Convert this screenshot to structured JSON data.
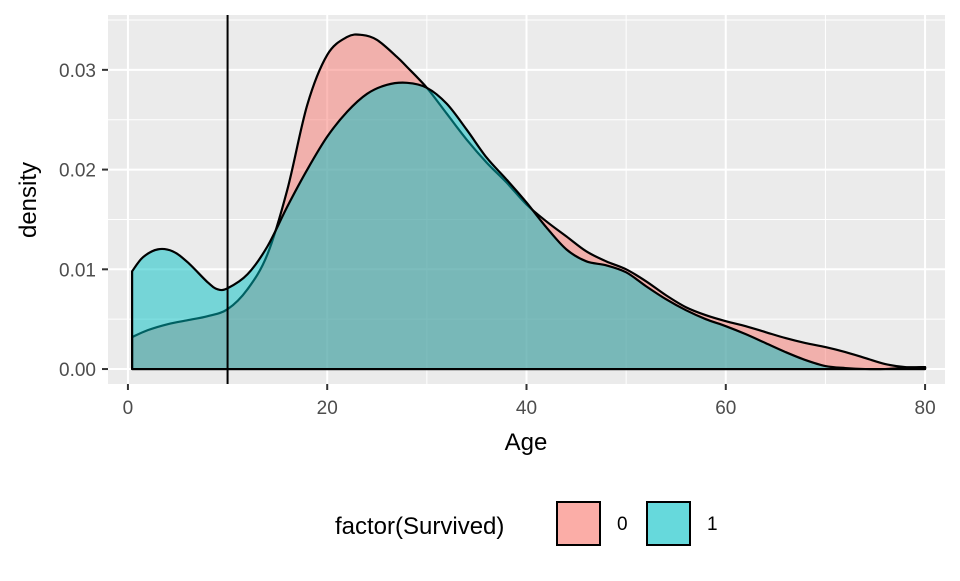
{
  "chart_data": {
    "type": "area",
    "subtype": "density",
    "title": "",
    "xlabel": "Age",
    "ylabel": "density",
    "xlim": [
      -2,
      82
    ],
    "ylim": [
      -0.0015,
      0.0355
    ],
    "x_ticks": [
      0,
      20,
      40,
      60,
      80
    ],
    "x_tick_labels": [
      "0",
      "20",
      "40",
      "60",
      "80"
    ],
    "y_ticks": [
      0.0,
      0.01,
      0.02,
      0.03
    ],
    "y_tick_labels": [
      "0.00",
      "0.01",
      "0.02",
      "0.03"
    ],
    "grid": true,
    "legend": {
      "position": "bottom",
      "title": "factor(Survived)",
      "entries": [
        {
          "label": "0",
          "color": "#F8766D"
        },
        {
          "label": "1",
          "color": "#00BFC4"
        }
      ]
    },
    "vline": {
      "x": 10
    },
    "series": [
      {
        "group": "0",
        "color": "#F8766D",
        "x": [
          0.42,
          2,
          4,
          6,
          8,
          10,
          12,
          14,
          16,
          18,
          20,
          22,
          23.5,
          25,
          27,
          28,
          30,
          32,
          34,
          36,
          38,
          40,
          42,
          44,
          46,
          48,
          50,
          52,
          54,
          56,
          58,
          60,
          62,
          64,
          66,
          68,
          70,
          72,
          74,
          76,
          78,
          80
        ],
        "y": [
          0.0032,
          0.0039,
          0.0045,
          0.0049,
          0.0053,
          0.006,
          0.008,
          0.0115,
          0.018,
          0.0265,
          0.0315,
          0.0333,
          0.0335,
          0.033,
          0.0313,
          0.0303,
          0.0282,
          0.0256,
          0.023,
          0.0207,
          0.0187,
          0.0165,
          0.0148,
          0.0133,
          0.0118,
          0.0108,
          0.01,
          0.0088,
          0.0074,
          0.0062,
          0.0054,
          0.0048,
          0.0043,
          0.0037,
          0.0031,
          0.0026,
          0.0022,
          0.0017,
          0.0011,
          0.0005,
          0.0002,
          0.0002
        ]
      },
      {
        "group": "1",
        "color": "#00BFC4",
        "x": [
          0.42,
          1.5,
          3,
          4.5,
          6,
          8,
          9,
          10,
          12,
          14,
          16,
          18,
          20,
          22,
          24,
          26,
          28,
          30,
          32,
          34,
          36,
          38,
          40,
          42,
          44,
          46,
          48,
          50,
          52,
          54,
          56,
          58,
          60,
          62,
          64,
          66,
          68,
          70,
          72,
          74,
          76,
          78,
          80
        ],
        "y": [
          0.0098,
          0.0112,
          0.012,
          0.0118,
          0.0107,
          0.0087,
          0.008,
          0.0081,
          0.0095,
          0.0123,
          0.0163,
          0.02,
          0.0233,
          0.0258,
          0.0276,
          0.0285,
          0.0287,
          0.0282,
          0.0266,
          0.024,
          0.0212,
          0.019,
          0.0167,
          0.0142,
          0.012,
          0.0108,
          0.0104,
          0.0097,
          0.0083,
          0.007,
          0.0059,
          0.005,
          0.0043,
          0.0035,
          0.0026,
          0.0017,
          0.0009,
          0.0003,
          0.0001,
          0.0,
          0.0,
          0.0001,
          0.0002
        ]
      }
    ]
  }
}
